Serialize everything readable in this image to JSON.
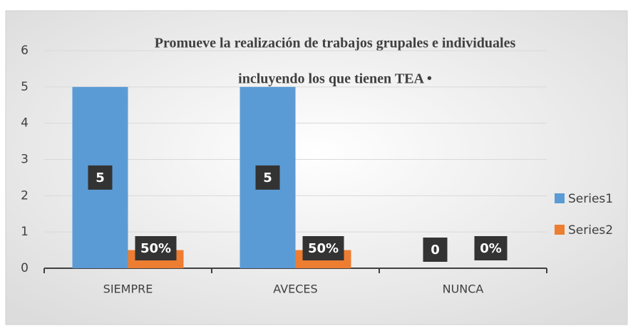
{
  "chart_data": {
    "type": "bar",
    "title": [
      "Promueve la realización de trabajos grupales e individuales",
      "incluyendo los que tienen TEA •"
    ],
    "categories": [
      "SIEMPRE",
      "AVECES",
      "NUNCA"
    ],
    "series": [
      {
        "name": "Series1",
        "color": "#5b9bd5",
        "values": [
          5,
          5,
          0
        ]
      },
      {
        "name": "Series2",
        "color": "#ed7d31",
        "values": [
          0.5,
          0.5,
          0
        ],
        "value_labels": [
          "50%",
          "50%",
          "0%"
        ]
      }
    ],
    "ylim": [
      0,
      6
    ],
    "yticks": [
      0,
      1,
      2,
      3,
      4,
      5,
      6
    ],
    "grid": true,
    "legend": "right"
  }
}
